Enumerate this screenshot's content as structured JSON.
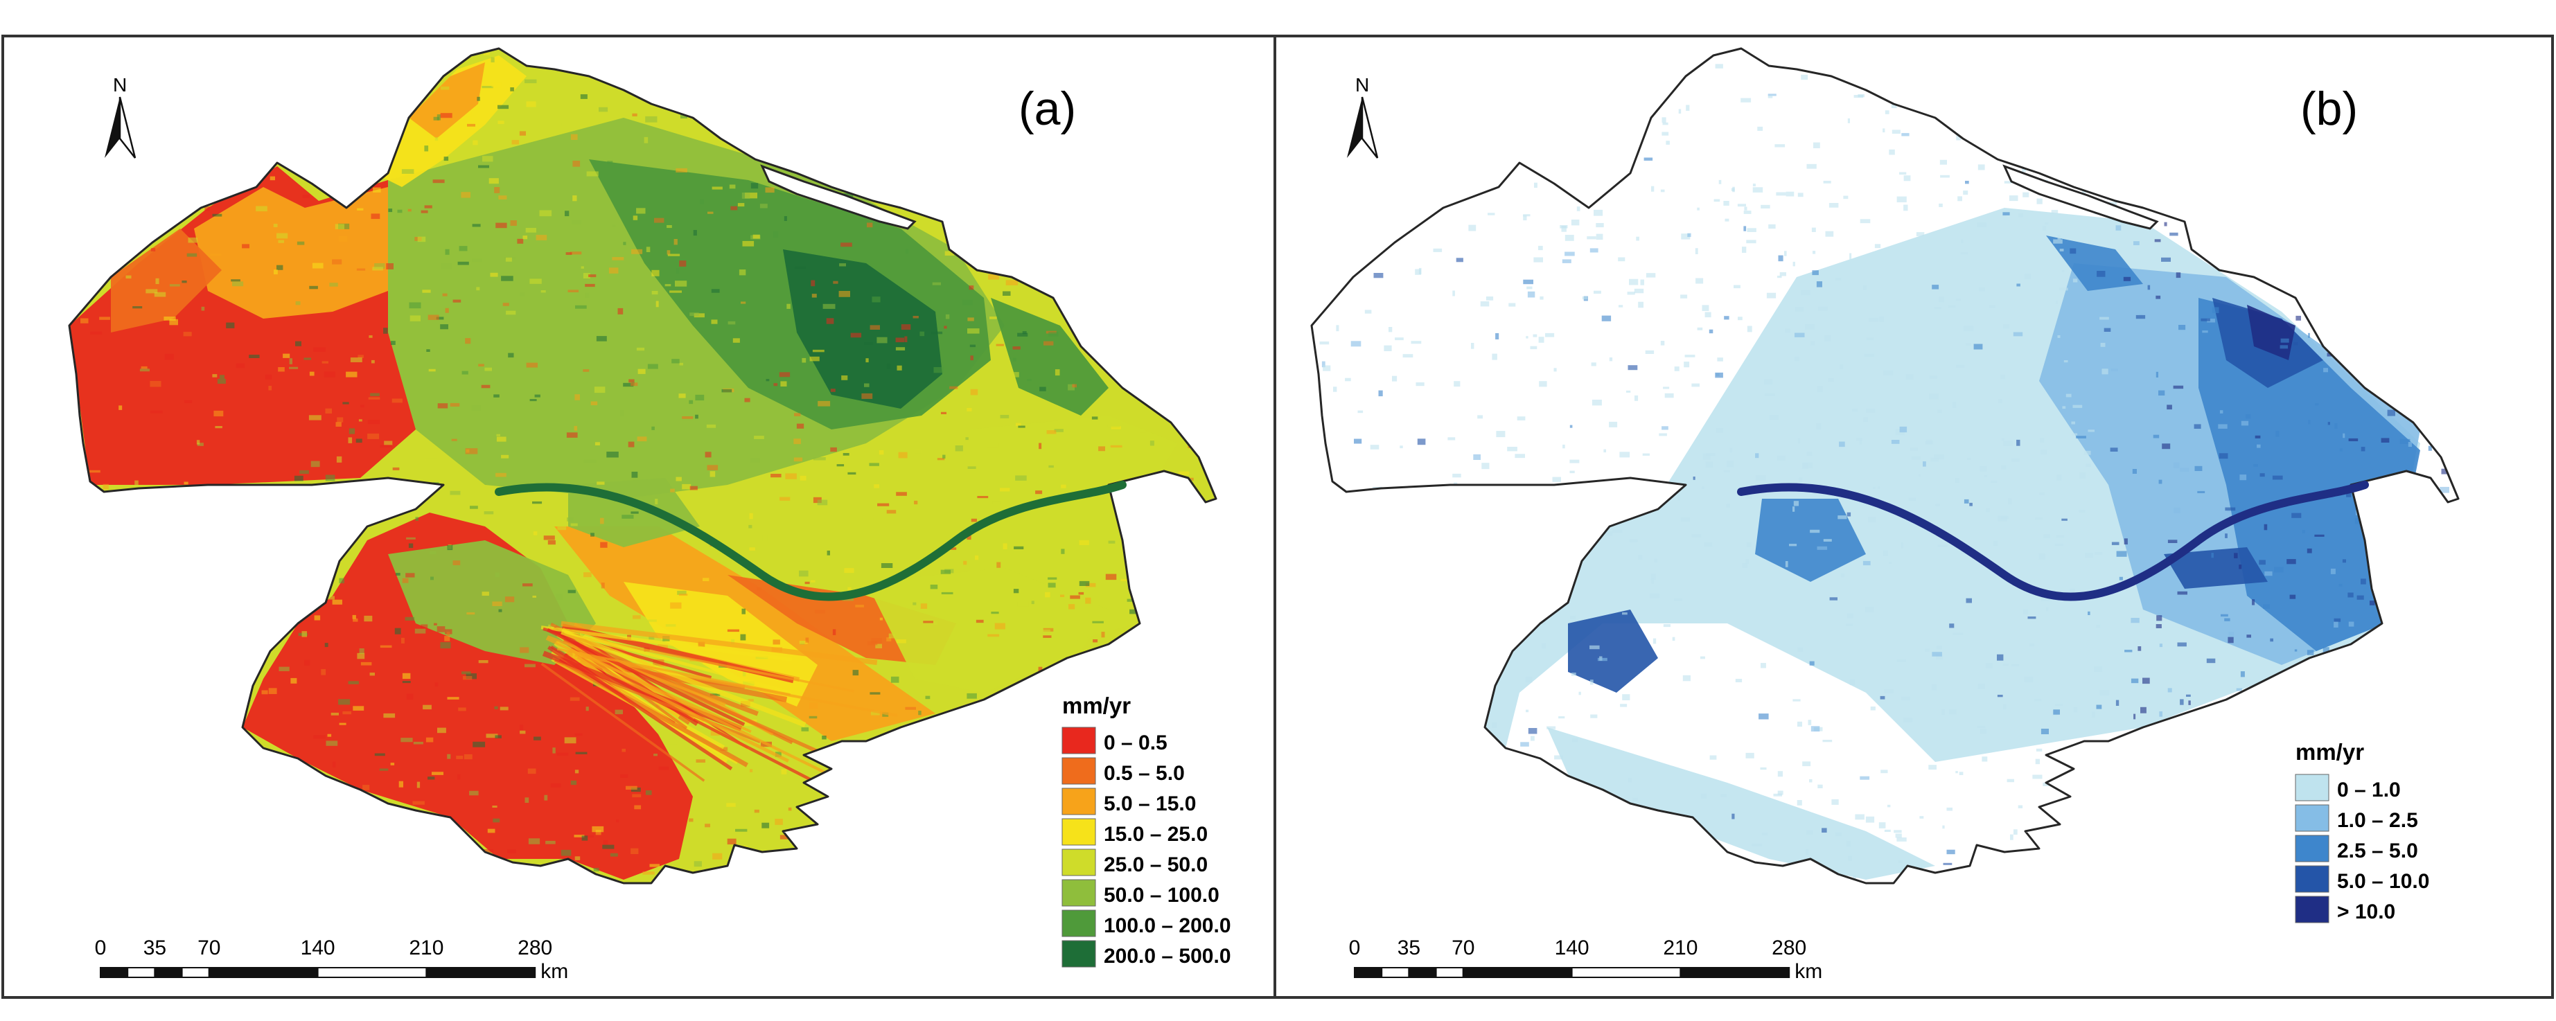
{
  "colors": {
    "frame": "#333333",
    "background": "#ffffff",
    "outline": "#262626"
  },
  "panel_a": {
    "label": "(a)",
    "north": "N",
    "legend_title": "mm/yr",
    "classes": [
      {
        "label": "0 – 0.5",
        "color": "#e8281e"
      },
      {
        "label": "0.5 – 5.0",
        "color": "#ef6c1c"
      },
      {
        "label": "5.0 – 15.0",
        "color": "#f7a31a"
      },
      {
        "label": "15.0 – 25.0",
        "color": "#f6e21a"
      },
      {
        "label": "25.0 – 50.0",
        "color": "#cfdc2a"
      },
      {
        "label": "50.0 – 100.0",
        "color": "#8fbe3c"
      },
      {
        "label": "100.0 – 200.0",
        "color": "#4f9a3a"
      },
      {
        "label": "200.0 – 500.0",
        "color": "#1e6e37"
      }
    ],
    "scale": {
      "ticks": [
        "0",
        "35",
        "70",
        "140",
        "210",
        "280"
      ],
      "unit": "km"
    }
  },
  "panel_b": {
    "label": "(b)",
    "north": "N",
    "legend_title": "mm/yr",
    "classes": [
      {
        "label": "0 – 1.0",
        "color": "#bfe3ee"
      },
      {
        "label": "1.0 – 2.5",
        "color": "#85bde6"
      },
      {
        "label": "2.5 – 5.0",
        "color": "#3e86cc"
      },
      {
        "label": "5.0 – 10.0",
        "color": "#2455a8"
      },
      {
        "label": "> 10.0",
        "color": "#1f2e85"
      }
    ],
    "scale": {
      "ticks": [
        "0",
        "35",
        "70",
        "140",
        "210",
        "280"
      ],
      "unit": "km"
    }
  }
}
